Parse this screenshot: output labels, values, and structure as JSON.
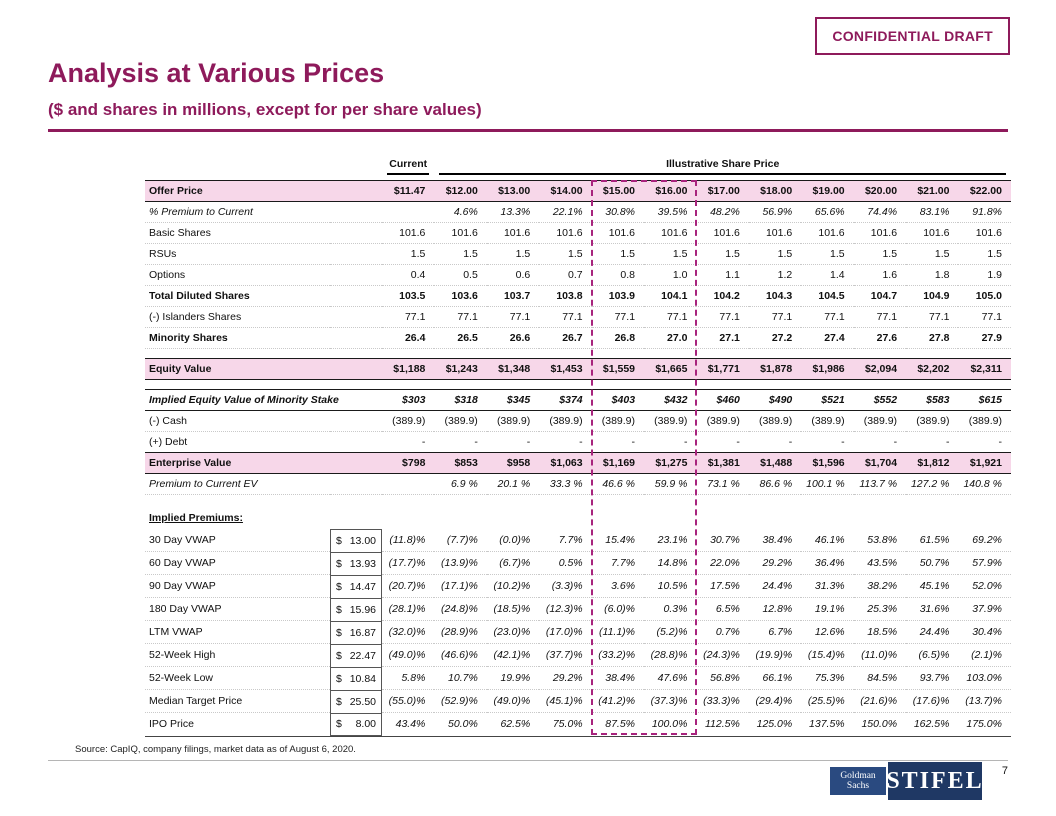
{
  "badge": {
    "label": "CONFIDENTIAL DRAFT"
  },
  "header": {
    "title": "Analysis at Various Prices",
    "subtitle": "($ and shares in millions, except for per share values)"
  },
  "table": {
    "group_headers": {
      "current": "Current",
      "illustrative": "Illustrative Share Price"
    },
    "rows": [
      {
        "label": "Offer Price",
        "style": "highlight",
        "values": [
          "$11.47",
          "$12.00",
          "$13.00",
          "$14.00",
          "$15.00",
          "$16.00",
          "$17.00",
          "$18.00",
          "$19.00",
          "$20.00",
          "$21.00",
          "$22.00"
        ]
      },
      {
        "label": "% Premium to Current",
        "style": "italic",
        "values": [
          "",
          "4.6%",
          "13.3%",
          "22.1%",
          "30.8%",
          "39.5%",
          "48.2%",
          "56.9%",
          "65.6%",
          "74.4%",
          "83.1%",
          "91.8%"
        ]
      },
      {
        "label": "Basic Shares",
        "style": "normal",
        "values": [
          "101.6",
          "101.6",
          "101.6",
          "101.6",
          "101.6",
          "101.6",
          "101.6",
          "101.6",
          "101.6",
          "101.6",
          "101.6",
          "101.6"
        ]
      },
      {
        "label": "RSUs",
        "style": "normal",
        "values": [
          "1.5",
          "1.5",
          "1.5",
          "1.5",
          "1.5",
          "1.5",
          "1.5",
          "1.5",
          "1.5",
          "1.5",
          "1.5",
          "1.5"
        ]
      },
      {
        "label": "Options",
        "style": "normal",
        "values": [
          "0.4",
          "0.5",
          "0.6",
          "0.7",
          "0.8",
          "1.0",
          "1.1",
          "1.2",
          "1.4",
          "1.6",
          "1.8",
          "1.9"
        ]
      },
      {
        "label": "Total Diluted Shares",
        "style": "bold",
        "values": [
          "103.5",
          "103.6",
          "103.7",
          "103.8",
          "103.9",
          "104.1",
          "104.2",
          "104.3",
          "104.5",
          "104.7",
          "104.9",
          "105.0"
        ]
      },
      {
        "label": "(-) Islanders Shares",
        "style": "normal",
        "values": [
          "77.1",
          "77.1",
          "77.1",
          "77.1",
          "77.1",
          "77.1",
          "77.1",
          "77.1",
          "77.1",
          "77.1",
          "77.1",
          "77.1"
        ]
      },
      {
        "label": "Minority Shares",
        "style": "bold",
        "values": [
          "26.4",
          "26.5",
          "26.6",
          "26.7",
          "26.8",
          "27.0",
          "27.1",
          "27.2",
          "27.4",
          "27.6",
          "27.8",
          "27.9"
        ]
      },
      {
        "style": "spacer"
      },
      {
        "label": "Equity Value",
        "style": "highlight",
        "values": [
          "$1,188",
          "$1,243",
          "$1,348",
          "$1,453",
          "$1,559",
          "$1,665",
          "$1,771",
          "$1,878",
          "$1,986",
          "$2,094",
          "$2,202",
          "$2,311"
        ]
      },
      {
        "style": "spacer"
      },
      {
        "label": "Implied Equity Value of Minority Stake",
        "style": "boxed",
        "values": [
          "$303",
          "$318",
          "$345",
          "$374",
          "$403",
          "$432",
          "$460",
          "$490",
          "$521",
          "$552",
          "$583",
          "$615"
        ]
      },
      {
        "label": "(-) Cash",
        "style": "normal",
        "values": [
          "(389.9)",
          "(389.9)",
          "(389.9)",
          "(389.9)",
          "(389.9)",
          "(389.9)",
          "(389.9)",
          "(389.9)",
          "(389.9)",
          "(389.9)",
          "(389.9)",
          "(389.9)"
        ]
      },
      {
        "label": "(+) Debt",
        "style": "normal",
        "values": [
          "-",
          "-",
          "-",
          "-",
          "-",
          "-",
          "-",
          "-",
          "-",
          "-",
          "-",
          "-"
        ]
      },
      {
        "label": "Enterprise Value",
        "style": "highlight",
        "values": [
          "$798",
          "$853",
          "$958",
          "$1,063",
          "$1,169",
          "$1,275",
          "$1,381",
          "$1,488",
          "$1,596",
          "$1,704",
          "$1,812",
          "$1,921"
        ]
      },
      {
        "label": "Premium to Current EV",
        "style": "italic",
        "values": [
          "",
          "6.9 %",
          "20.1 %",
          "33.3 %",
          "46.6 %",
          "59.9 %",
          "73.1 %",
          "86.6 %",
          "100.1 %",
          "113.7 %",
          "127.2 %",
          "140.8 %"
        ]
      }
    ],
    "implied_premiums": {
      "section_label": "Implied Premiums:",
      "rows": [
        {
          "label": "30 Day VWAP",
          "ref_price": "$ 13.00",
          "values": [
            "(11.8)%",
            "(7.7)%",
            "(0.0)%",
            "7.7%",
            "15.4%",
            "23.1%",
            "30.7%",
            "38.4%",
            "46.1%",
            "53.8%",
            "61.5%",
            "69.2%"
          ]
        },
        {
          "label": "60 Day VWAP",
          "ref_price": "$ 13.93",
          "values": [
            "(17.7)%",
            "(13.9)%",
            "(6.7)%",
            "0.5%",
            "7.7%",
            "14.8%",
            "22.0%",
            "29.2%",
            "36.4%",
            "43.5%",
            "50.7%",
            "57.9%"
          ]
        },
        {
          "label": "90 Day VWAP",
          "ref_price": "$ 14.47",
          "values": [
            "(20.7)%",
            "(17.1)%",
            "(10.2)%",
            "(3.3)%",
            "3.6%",
            "10.5%",
            "17.5%",
            "24.4%",
            "31.3%",
            "38.2%",
            "45.1%",
            "52.0%"
          ]
        },
        {
          "label": "180 Day VWAP",
          "ref_price": "$ 15.96",
          "values": [
            "(28.1)%",
            "(24.8)%",
            "(18.5)%",
            "(12.3)%",
            "(6.0)%",
            "0.3%",
            "6.5%",
            "12.8%",
            "19.1%",
            "25.3%",
            "31.6%",
            "37.9%"
          ]
        },
        {
          "label": "LTM VWAP",
          "ref_price": "$ 16.87",
          "values": [
            "(32.0)%",
            "(28.9)%",
            "(23.0)%",
            "(17.0)%",
            "(11.1)%",
            "(5.2)%",
            "0.7%",
            "6.7%",
            "12.6%",
            "18.5%",
            "24.4%",
            "30.4%"
          ]
        },
        {
          "label": "52-Week High",
          "ref_price": "$ 22.47",
          "values": [
            "(49.0)%",
            "(46.6)%",
            "(42.1)%",
            "(37.7)%",
            "(33.2)%",
            "(28.8)%",
            "(24.3)%",
            "(19.9)%",
            "(15.4)%",
            "(11.0)%",
            "(6.5)%",
            "(2.1)%"
          ]
        },
        {
          "label": "52-Week Low",
          "ref_price": "$ 10.84",
          "values": [
            "5.8%",
            "10.7%",
            "19.9%",
            "29.2%",
            "38.4%",
            "47.6%",
            "56.8%",
            "66.1%",
            "75.3%",
            "84.5%",
            "93.7%",
            "103.0%"
          ]
        },
        {
          "label": "Median Target Price",
          "ref_price": "$ 25.50",
          "values": [
            "(55.0)%",
            "(52.9)%",
            "(49.0)%",
            "(45.1)%",
            "(41.2)%",
            "(37.3)%",
            "(33.3)%",
            "(29.4)%",
            "(25.5)%",
            "(21.6)%",
            "(17.6)%",
            "(13.7)%"
          ]
        },
        {
          "label": "IPO Price",
          "ref_price": "$ 8.00",
          "values": [
            "43.4%",
            "50.0%",
            "62.5%",
            "75.0%",
            "87.5%",
            "100.0%",
            "112.5%",
            "125.0%",
            "137.5%",
            "150.0%",
            "162.5%",
            "175.0%"
          ]
        }
      ]
    }
  },
  "footer": {
    "source": "Source: CapIQ, company filings, market data as of August 6, 2020.",
    "page_number": "7",
    "goldman_line1": "Goldman",
    "goldman_line2": "Sachs",
    "stifel": "STIFEL"
  },
  "colors": {
    "accent": "#8E1A5B",
    "row_highlight": "#F7D7E9",
    "dashed_box": "#A8237D",
    "logo_navy": "#1F3864"
  }
}
